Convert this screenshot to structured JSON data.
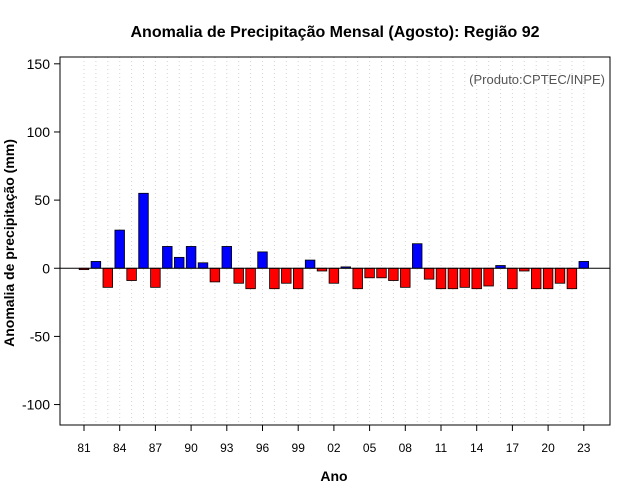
{
  "chart_data": {
    "type": "bar",
    "title": "Anomalia de Precipitação Mensal (Agosto): Região 92",
    "xlabel": "Ano",
    "ylabel": "Anomalia de precipitação (mm)",
    "credit": "(Produto:CPTEC/INPE)",
    "ylim": [
      -115,
      155
    ],
    "yticks": [
      -100,
      -50,
      0,
      50,
      100,
      150
    ],
    "grid": "vertical dotted",
    "positive_color": "#0000ff",
    "negative_color": "#ff0000",
    "years": [
      1981,
      1982,
      1983,
      1984,
      1985,
      1986,
      1987,
      1988,
      1989,
      1990,
      1991,
      1992,
      1993,
      1994,
      1995,
      1996,
      1997,
      1998,
      1999,
      2000,
      2001,
      2002,
      2003,
      2004,
      2005,
      2006,
      2007,
      2008,
      2009,
      2010,
      2011,
      2012,
      2013,
      2014,
      2015,
      2016,
      2017,
      2018,
      2019,
      2020,
      2021,
      2022,
      2023
    ],
    "values": [
      -1,
      5,
      -14,
      28,
      -9,
      55,
      -14,
      16,
      8,
      16,
      4,
      -10,
      16,
      -11,
      -15,
      12,
      -15,
      -11,
      -15,
      6,
      -2,
      -11,
      1,
      -15,
      -7,
      -7,
      -9,
      -14,
      18,
      -8,
      -15,
      -15,
      -14,
      -15,
      -13,
      2,
      -15,
      -2,
      -15,
      -15,
      -11,
      -15,
      5
    ],
    "xtick_labels": [
      "81",
      "84",
      "87",
      "90",
      "93",
      "96",
      "99",
      "02",
      "05",
      "08",
      "11",
      "14",
      "17",
      "20",
      "23"
    ],
    "xtick_years": [
      1981,
      1984,
      1987,
      1990,
      1993,
      1996,
      1999,
      2002,
      2005,
      2008,
      2011,
      2014,
      2017,
      2020,
      2023
    ]
  }
}
